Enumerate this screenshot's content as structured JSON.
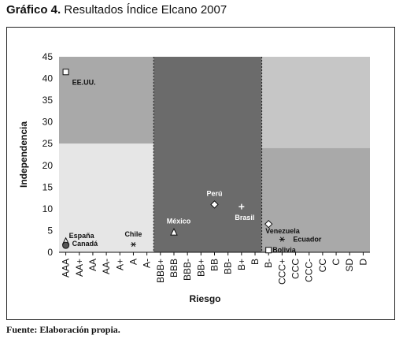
{
  "header": {
    "title_bold": "Gráfico 4.",
    "title_rest": "Resultados Índice Elcano 2007"
  },
  "footer": {
    "source": "Fuente: Elaboración propia."
  },
  "chart_data": {
    "type": "scatter",
    "xlabel": "Riesgo",
    "ylabel": "Independencia",
    "categories": [
      "AAA",
      "AA+",
      "AA",
      "AA-",
      "A+",
      "A",
      "A-",
      "BBB+",
      "BBB",
      "BBB-",
      "BB+",
      "BB",
      "BB-",
      "B+",
      "B",
      "B-",
      "CCC+",
      "CCC",
      "CCC-",
      "CC",
      "C",
      "SD",
      "D"
    ],
    "yticks": [
      0,
      5,
      10,
      15,
      20,
      25,
      30,
      35,
      40,
      45
    ],
    "ylim": [
      0,
      45
    ],
    "regions": [
      {
        "x_from": "AAA",
        "x_to": "A-",
        "y_from": 25,
        "y_to": 45,
        "color": "#a9a9a9"
      },
      {
        "x_from": "AAA",
        "x_to": "A-",
        "y_from": 0,
        "y_to": 25,
        "color": "#e6e6e6"
      },
      {
        "x_from": "BBB+",
        "x_to": "B",
        "y_from": 0,
        "y_to": 45,
        "color": "#6b6b6b"
      },
      {
        "x_from": "B-",
        "x_to": "D",
        "y_from": 24,
        "y_to": 45,
        "color": "#c6c6c6"
      },
      {
        "x_from": "B-",
        "x_to": "D",
        "y_from": 0,
        "y_to": 24,
        "color": "#a9a9a9"
      }
    ],
    "points": [
      {
        "label": "EE.UU.",
        "x": "AAA",
        "y": 41.5,
        "marker": "square"
      },
      {
        "label": "España",
        "x": "AAA",
        "y": 2.5,
        "marker": "triangle"
      },
      {
        "label": "Canadá",
        "x": "AAA",
        "y": 1.6,
        "marker": "circle"
      },
      {
        "label": "Chile",
        "x": "A",
        "y": 1.8,
        "marker": "asterisk"
      },
      {
        "label": "México",
        "x": "BBB",
        "y": 4.6,
        "marker": "triangle"
      },
      {
        "label": "Perú",
        "x": "BB",
        "y": 11,
        "marker": "diamond"
      },
      {
        "label": "Brasil",
        "x": "B+",
        "y": 10.5,
        "marker": "plus"
      },
      {
        "label": "Venezuela",
        "x": "B-",
        "y": 6.5,
        "marker": "diamond"
      },
      {
        "label": "Ecuador",
        "x": "CCC+",
        "y": 3,
        "marker": "asterisk"
      },
      {
        "label": "Bolivia",
        "x": "B-",
        "y": 0.5,
        "marker": "square"
      }
    ]
  }
}
